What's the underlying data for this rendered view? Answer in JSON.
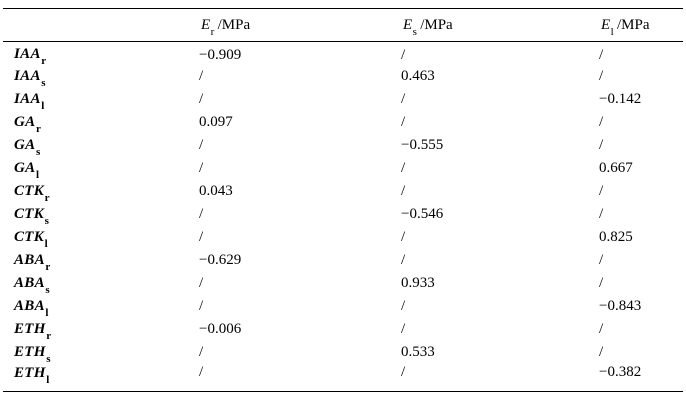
{
  "page": {
    "background": "#ffffff",
    "text_color": "#000000",
    "rule_color": "#000000"
  },
  "table": {
    "columns": [
      {
        "symbol": "E",
        "sub": "r",
        "unit": "/MPa"
      },
      {
        "symbol": "E",
        "sub": "s",
        "unit": "/MPa"
      },
      {
        "symbol": "E",
        "sub": "l",
        "unit": "/MPa"
      }
    ],
    "rows": [
      {
        "label": "IAA",
        "sub": "r",
        "values": [
          "−0.909",
          "/",
          "/"
        ]
      },
      {
        "label": "IAA",
        "sub": "s",
        "values": [
          "/",
          "0.463",
          "/"
        ]
      },
      {
        "label": "IAA",
        "sub": "l",
        "values": [
          "/",
          "/",
          "−0.142"
        ]
      },
      {
        "label": "GA",
        "sub": "r",
        "values": [
          "0.097",
          "/",
          "/"
        ]
      },
      {
        "label": "GA",
        "sub": "s",
        "values": [
          "/",
          "−0.555",
          "/"
        ]
      },
      {
        "label": "GA",
        "sub": "l",
        "values": [
          "/",
          "/",
          "0.667"
        ]
      },
      {
        "label": "CTK",
        "sub": "r",
        "values": [
          "0.043",
          "/",
          "/"
        ]
      },
      {
        "label": "CTK",
        "sub": "s",
        "values": [
          "/",
          "−0.546",
          "/"
        ]
      },
      {
        "label": "CTK",
        "sub": "l",
        "values": [
          "/",
          "/",
          "0.825"
        ]
      },
      {
        "label": "ABA",
        "sub": "r",
        "values": [
          "−0.629",
          "/",
          "/"
        ]
      },
      {
        "label": "ABA",
        "sub": "s",
        "values": [
          "/",
          "0.933",
          "/"
        ]
      },
      {
        "label": "ABA",
        "sub": "l",
        "values": [
          "/",
          "/",
          "−0.843"
        ]
      },
      {
        "label": "ETH",
        "sub": "r",
        "values": [
          "−0.006",
          "/",
          "/"
        ]
      },
      {
        "label": "ETH",
        "sub": "s",
        "values": [
          "/",
          "0.533",
          "/"
        ]
      },
      {
        "label": "ETH",
        "sub": "l",
        "values": [
          "/",
          "/",
          "−0.382"
        ]
      }
    ]
  },
  "chart_data": {
    "type": "table",
    "columns": [
      "",
      "E_r /MPa",
      "E_s /MPa",
      "E_l /MPa"
    ],
    "rows": [
      [
        "IAA_r",
        -0.909,
        null,
        null
      ],
      [
        "IAA_s",
        null,
        0.463,
        null
      ],
      [
        "IAA_l",
        null,
        null,
        -0.142
      ],
      [
        "GA_r",
        0.097,
        null,
        null
      ],
      [
        "GA_s",
        null,
        -0.555,
        null
      ],
      [
        "GA_l",
        null,
        null,
        0.667
      ],
      [
        "CTK_r",
        0.043,
        null,
        null
      ],
      [
        "CTK_s",
        null,
        -0.546,
        null
      ],
      [
        "CTK_l",
        null,
        null,
        0.825
      ],
      [
        "ABA_r",
        -0.629,
        null,
        null
      ],
      [
        "ABA_s",
        null,
        0.933,
        null
      ],
      [
        "ABA_l",
        null,
        null,
        -0.843
      ],
      [
        "ETH_r",
        -0.006,
        null,
        null
      ],
      [
        "ETH_s",
        null,
        0.533,
        null
      ],
      [
        "ETH_l",
        null,
        null,
        -0.382
      ]
    ],
    "missing_value_marker": "/"
  }
}
